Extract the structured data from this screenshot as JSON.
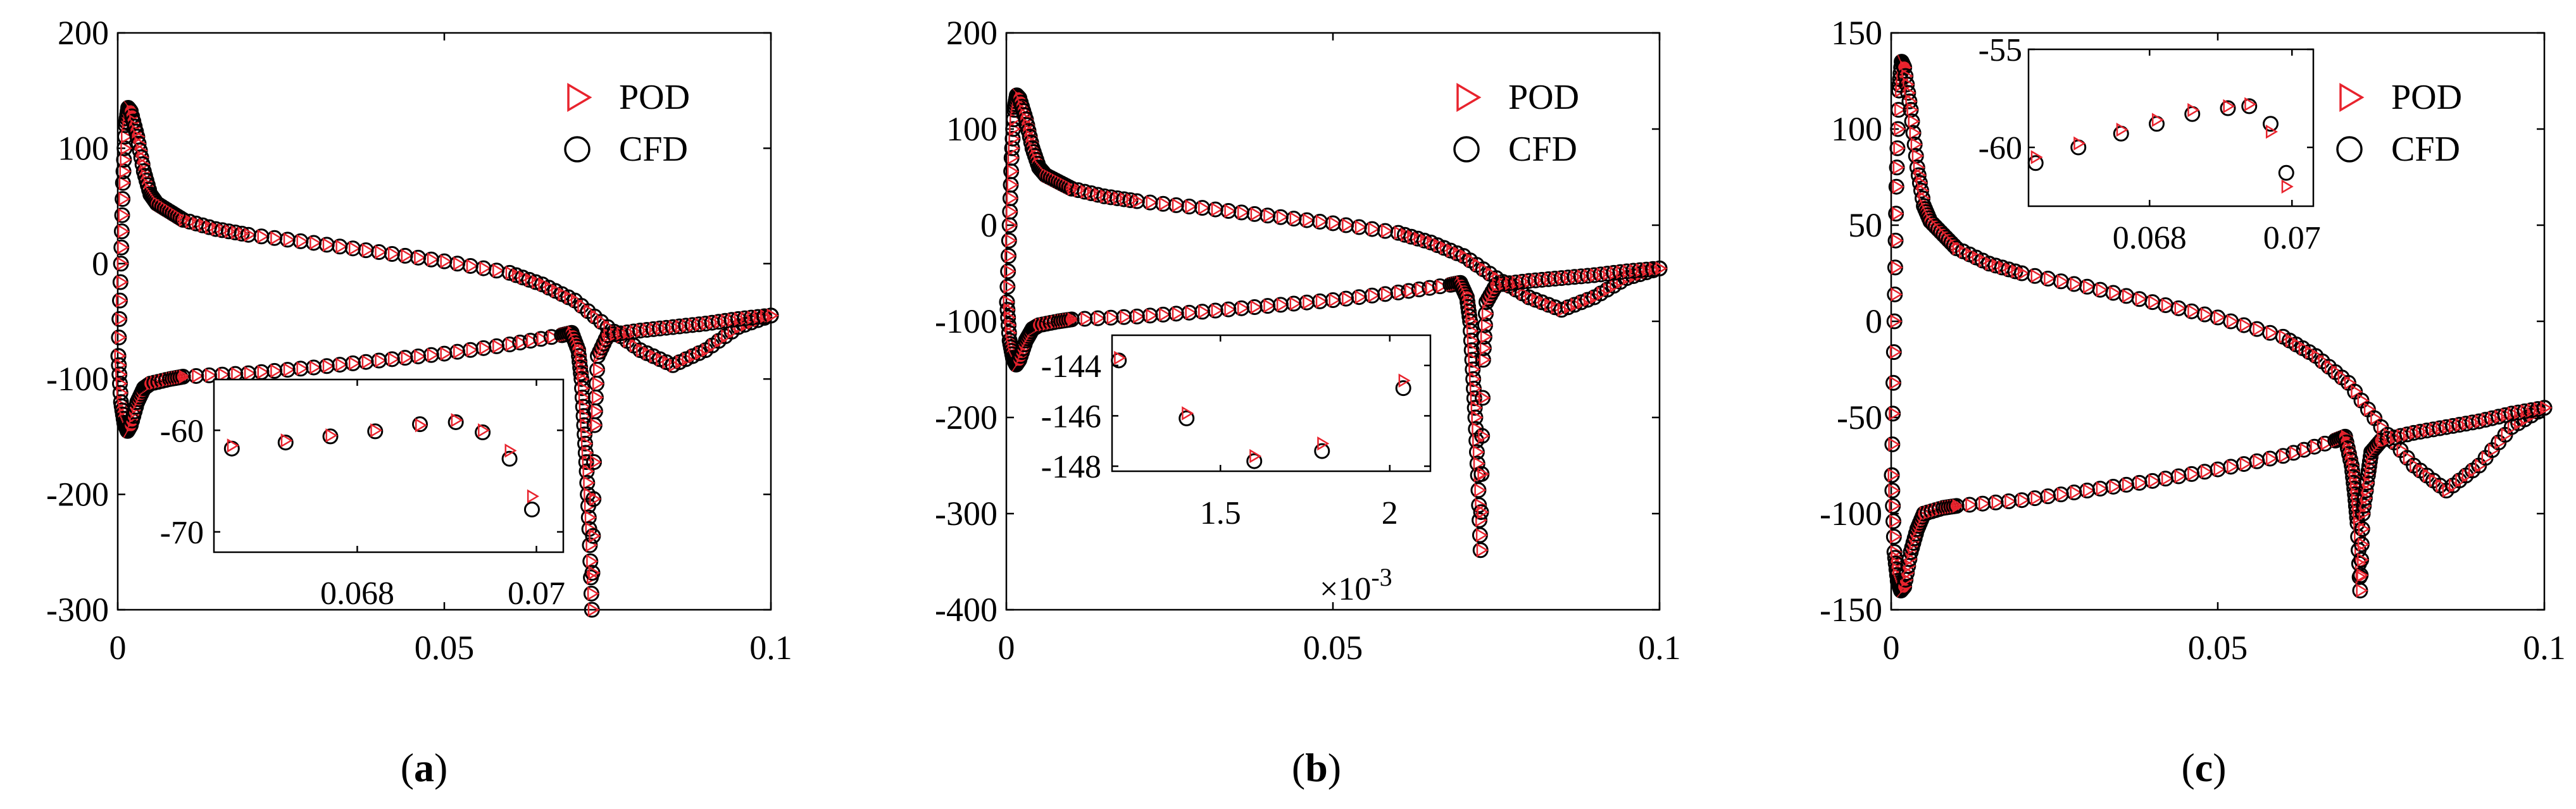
{
  "colors": {
    "pod": "#e8232d",
    "cfd": "#000000",
    "axis": "#000000",
    "background": "#ffffff"
  },
  "legend": {
    "pod_label": "POD",
    "cfd_label": "CFD"
  },
  "chart_data": [
    {
      "panel": "a",
      "panel_label": "a",
      "type": "scatter",
      "xlim": [
        0,
        0.1
      ],
      "ylim": [
        -300,
        200
      ],
      "xticks": [
        0,
        0.05,
        0.1
      ],
      "xtick_labels": [
        "0",
        "0.05",
        "0.1"
      ],
      "yticks": [
        -300,
        -200,
        -100,
        0,
        100,
        200
      ],
      "ytick_labels": [
        "-300",
        "-200",
        "-100",
        "0",
        "100",
        "200"
      ],
      "series": [
        {
          "name": "POD"
        },
        {
          "name": "CFD"
        }
      ],
      "curve": {
        "upper": [
          [
            0.0001,
            -80
          ],
          [
            0.0005,
            0
          ],
          [
            0.0008,
            70
          ],
          [
            0.0012,
            120
          ],
          [
            0.0016,
            135
          ],
          [
            0.002,
            132
          ],
          [
            0.003,
            110
          ],
          [
            0.004,
            80
          ],
          [
            0.005,
            60
          ],
          [
            0.006,
            52
          ],
          [
            0.008,
            45
          ],
          [
            0.01,
            38
          ],
          [
            0.015,
            30
          ],
          [
            0.02,
            25
          ],
          [
            0.03,
            18
          ],
          [
            0.04,
            10
          ],
          [
            0.05,
            2
          ],
          [
            0.06,
            -8
          ],
          [
            0.065,
            -18
          ],
          [
            0.07,
            -32
          ],
          [
            0.075,
            -55
          ],
          [
            0.08,
            -75
          ],
          [
            0.085,
            -88
          ],
          [
            0.09,
            -75
          ],
          [
            0.095,
            -55
          ],
          [
            0.1,
            -45
          ]
        ],
        "lower": [
          [
            0.0001,
            -80
          ],
          [
            0.0005,
            -120
          ],
          [
            0.001,
            -138
          ],
          [
            0.0015,
            -145
          ],
          [
            0.002,
            -140
          ],
          [
            0.003,
            -120
          ],
          [
            0.004,
            -108
          ],
          [
            0.005,
            -104
          ],
          [
            0.008,
            -100
          ],
          [
            0.01,
            -98
          ],
          [
            0.02,
            -95
          ],
          [
            0.03,
            -90
          ],
          [
            0.04,
            -84
          ],
          [
            0.05,
            -78
          ],
          [
            0.06,
            -70
          ],
          [
            0.068,
            -62
          ],
          [
            0.0695,
            -60
          ],
          [
            0.0705,
            -75
          ],
          [
            0.071,
            -100
          ],
          [
            0.0714,
            -140
          ],
          [
            0.0718,
            -180
          ],
          [
            0.0722,
            -230
          ],
          [
            0.0726,
            -300
          ],
          [
            0.073,
            -140
          ],
          [
            0.0735,
            -80
          ],
          [
            0.075,
            -62
          ],
          [
            0.08,
            -58
          ],
          [
            0.085,
            -55
          ],
          [
            0.09,
            -52
          ],
          [
            0.095,
            -48
          ],
          [
            0.1,
            -45
          ]
        ]
      },
      "inset": {
        "xlim": [
          0.0664,
          0.0703
        ],
        "ylim": [
          -72,
          -55
        ],
        "xticks": [
          0.068,
          0.07
        ],
        "xtick_labels": [
          "0.068",
          "0.07"
        ],
        "yticks": [
          -70,
          -60
        ],
        "ytick_labels": [
          "-70",
          "-60"
        ],
        "pod": [
          [
            0.0666,
            -61.5
          ],
          [
            0.0672,
            -61
          ],
          [
            0.0677,
            -60.5
          ],
          [
            0.0682,
            -60
          ],
          [
            0.0687,
            -59.5
          ],
          [
            0.0691,
            -59
          ],
          [
            0.0694,
            -60
          ],
          [
            0.0697,
            -62
          ],
          [
            0.06995,
            -66.5
          ]
        ],
        "cfd": [
          [
            0.0666,
            -61.8
          ],
          [
            0.0672,
            -61.2
          ],
          [
            0.0677,
            -60.6
          ],
          [
            0.0682,
            -60.1
          ],
          [
            0.0687,
            -59.4
          ],
          [
            0.0691,
            -59.2
          ],
          [
            0.0694,
            -60.2
          ],
          [
            0.0697,
            -62.8
          ],
          [
            0.06995,
            -67.8
          ]
        ]
      }
    },
    {
      "panel": "b",
      "panel_label": "b",
      "type": "scatter",
      "xlim": [
        0,
        0.1
      ],
      "ylim": [
        -400,
        200
      ],
      "xticks": [
        0,
        0.05,
        0.1
      ],
      "xtick_labels": [
        "0",
        "0.05",
        "0.1"
      ],
      "yticks": [
        -400,
        -300,
        -200,
        -100,
        0,
        100,
        200
      ],
      "ytick_labels": [
        "-400",
        "-300",
        "-200",
        "-100",
        "0",
        "100",
        "200"
      ],
      "series": [
        {
          "name": "POD"
        },
        {
          "name": "CFD"
        }
      ],
      "curve": {
        "upper": [
          [
            0.0001,
            -80
          ],
          [
            0.0005,
            0
          ],
          [
            0.0008,
            70
          ],
          [
            0.0012,
            120
          ],
          [
            0.0016,
            135
          ],
          [
            0.002,
            132
          ],
          [
            0.003,
            110
          ],
          [
            0.004,
            80
          ],
          [
            0.005,
            60
          ],
          [
            0.006,
            52
          ],
          [
            0.008,
            45
          ],
          [
            0.01,
            38
          ],
          [
            0.015,
            30
          ],
          [
            0.02,
            25
          ],
          [
            0.03,
            18
          ],
          [
            0.04,
            10
          ],
          [
            0.05,
            2
          ],
          [
            0.06,
            -8
          ],
          [
            0.065,
            -18
          ],
          [
            0.07,
            -32
          ],
          [
            0.075,
            -55
          ],
          [
            0.08,
            -75
          ],
          [
            0.085,
            -88
          ],
          [
            0.09,
            -75
          ],
          [
            0.095,
            -55
          ],
          [
            0.1,
            -45
          ]
        ],
        "lower": [
          [
            0.0001,
            -80
          ],
          [
            0.0005,
            -120
          ],
          [
            0.001,
            -138
          ],
          [
            0.0015,
            -145
          ],
          [
            0.002,
            -140
          ],
          [
            0.003,
            -120
          ],
          [
            0.004,
            -108
          ],
          [
            0.005,
            -104
          ],
          [
            0.008,
            -100
          ],
          [
            0.01,
            -98
          ],
          [
            0.02,
            -95
          ],
          [
            0.03,
            -90
          ],
          [
            0.04,
            -84
          ],
          [
            0.05,
            -78
          ],
          [
            0.06,
            -70
          ],
          [
            0.068,
            -62
          ],
          [
            0.0695,
            -60
          ],
          [
            0.0705,
            -75
          ],
          [
            0.071,
            -100
          ],
          [
            0.0714,
            -150
          ],
          [
            0.0718,
            -200
          ],
          [
            0.0722,
            -260
          ],
          [
            0.0726,
            -338
          ],
          [
            0.073,
            -140
          ],
          [
            0.0735,
            -80
          ],
          [
            0.075,
            -62
          ],
          [
            0.08,
            -58
          ],
          [
            0.085,
            -55
          ],
          [
            0.09,
            -52
          ],
          [
            0.095,
            -48
          ],
          [
            0.1,
            -45
          ]
        ]
      },
      "inset": {
        "xlim": [
          0.00118,
          0.00212
        ],
        "ylim": [
          -148.2,
          -142.8
        ],
        "xticks": [
          0.0015,
          0.002
        ],
        "xtick_labels": [
          "1.5",
          "2"
        ],
        "yticks": [
          -148,
          -146,
          -144
        ],
        "ytick_labels": [
          "-148",
          "-146",
          "-144"
        ],
        "scale_label_prefix": "×10",
        "scale_label_exponent": "-3",
        "pod": [
          [
            0.0012,
            -143.7
          ],
          [
            0.0014,
            -145.9
          ],
          [
            0.0016,
            -147.6
          ],
          [
            0.0018,
            -147.1
          ],
          [
            0.00204,
            -144.6
          ]
        ],
        "cfd": [
          [
            0.0012,
            -143.8
          ],
          [
            0.0014,
            -146.1
          ],
          [
            0.0016,
            -147.8
          ],
          [
            0.0018,
            -147.4
          ],
          [
            0.00204,
            -144.9
          ]
        ]
      }
    },
    {
      "panel": "c",
      "panel_label": "c",
      "type": "scatter",
      "xlim": [
        0,
        0.1
      ],
      "ylim": [
        -150,
        150
      ],
      "xticks": [
        0,
        0.05,
        0.1
      ],
      "xtick_labels": [
        "0",
        "0.05",
        "0.1"
      ],
      "yticks": [
        -150,
        -100,
        -50,
        0,
        50,
        100,
        150
      ],
      "ytick_labels": [
        "-150",
        "-100",
        "-50",
        "0",
        "50",
        "100",
        "150"
      ],
      "series": [
        {
          "name": "POD"
        },
        {
          "name": "CFD"
        }
      ],
      "curve": {
        "upper": [
          [
            0.0001,
            -80
          ],
          [
            0.0005,
            0
          ],
          [
            0.0008,
            70
          ],
          [
            0.0012,
            120
          ],
          [
            0.0016,
            135
          ],
          [
            0.002,
            132
          ],
          [
            0.003,
            110
          ],
          [
            0.004,
            80
          ],
          [
            0.005,
            60
          ],
          [
            0.006,
            52
          ],
          [
            0.008,
            45
          ],
          [
            0.01,
            38
          ],
          [
            0.015,
            30
          ],
          [
            0.02,
            25
          ],
          [
            0.03,
            18
          ],
          [
            0.04,
            10
          ],
          [
            0.05,
            2
          ],
          [
            0.06,
            -8
          ],
          [
            0.065,
            -18
          ],
          [
            0.07,
            -32
          ],
          [
            0.075,
            -55
          ],
          [
            0.08,
            -75
          ],
          [
            0.085,
            -88
          ],
          [
            0.09,
            -75
          ],
          [
            0.095,
            -55
          ],
          [
            0.1,
            -45
          ]
        ],
        "lower": [
          [
            0.0001,
            -80
          ],
          [
            0.0005,
            -120
          ],
          [
            0.001,
            -135
          ],
          [
            0.0015,
            -140
          ],
          [
            0.002,
            -138
          ],
          [
            0.003,
            -120
          ],
          [
            0.004,
            -108
          ],
          [
            0.005,
            -100
          ],
          [
            0.008,
            -97
          ],
          [
            0.01,
            -96
          ],
          [
            0.02,
            -93
          ],
          [
            0.03,
            -88
          ],
          [
            0.04,
            -83
          ],
          [
            0.05,
            -77
          ],
          [
            0.06,
            -70
          ],
          [
            0.068,
            -62
          ],
          [
            0.0695,
            -60
          ],
          [
            0.0705,
            -75
          ],
          [
            0.071,
            -90
          ],
          [
            0.0714,
            -105
          ],
          [
            0.0718,
            -140
          ],
          [
            0.0722,
            -100
          ],
          [
            0.073,
            -80
          ],
          [
            0.0735,
            -68
          ],
          [
            0.075,
            -62
          ],
          [
            0.08,
            -58
          ],
          [
            0.085,
            -55
          ],
          [
            0.09,
            -52
          ],
          [
            0.095,
            -48
          ],
          [
            0.1,
            -45
          ]
        ]
      },
      "inset": {
        "xlim": [
          0.0663,
          0.0703
        ],
        "ylim": [
          -63,
          -55
        ],
        "xticks": [
          0.068,
          0.07
        ],
        "xtick_labels": [
          "0.068",
          "0.07"
        ],
        "yticks": [
          -60,
          -55
        ],
        "ytick_labels": [
          "-60",
          "-55"
        ],
        "pod": [
          [
            0.0664,
            -60.5
          ],
          [
            0.067,
            -59.8
          ],
          [
            0.0676,
            -59.1
          ],
          [
            0.0681,
            -58.6
          ],
          [
            0.0686,
            -58.1
          ],
          [
            0.0691,
            -57.9
          ],
          [
            0.0694,
            -57.8
          ],
          [
            0.0697,
            -59.2
          ],
          [
            0.06992,
            -62
          ]
        ],
        "cfd": [
          [
            0.0664,
            -60.8
          ],
          [
            0.067,
            -60
          ],
          [
            0.0676,
            -59.3
          ],
          [
            0.0681,
            -58.8
          ],
          [
            0.0686,
            -58.3
          ],
          [
            0.0691,
            -58
          ],
          [
            0.0694,
            -57.9
          ],
          [
            0.0697,
            -58.8
          ],
          [
            0.06992,
            -61.3
          ]
        ]
      }
    }
  ]
}
